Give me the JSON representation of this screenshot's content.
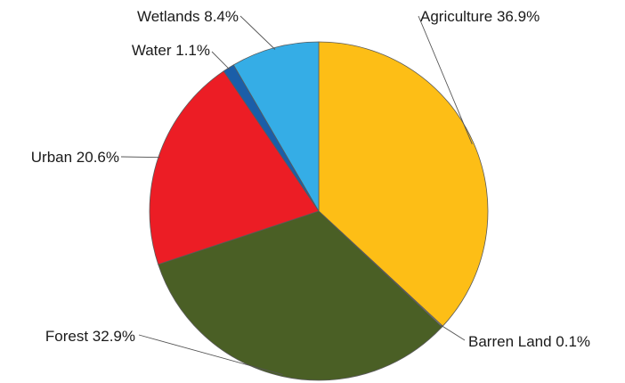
{
  "chart_data": {
    "type": "pie",
    "slices": [
      {
        "name": "Agriculture",
        "value": 36.9,
        "label": "Agriculture 36.9%",
        "color": "#FDBE16"
      },
      {
        "name": "Barren Land",
        "value": 0.1,
        "label": "Barren Land 0.1%",
        "color": "#B8B8B8"
      },
      {
        "name": "Forest",
        "value": 32.9,
        "label": "Forest 32.9%",
        "color": "#4A5F25"
      },
      {
        "name": "Urban",
        "value": 20.6,
        "label": "Urban 20.6%",
        "color": "#EC1D25"
      },
      {
        "name": "Water",
        "value": 1.1,
        "label": "Water 1.1%",
        "color": "#1B5EA8"
      },
      {
        "name": "Wetlands",
        "value": 8.4,
        "label": "Wetlands 8.4%",
        "color": "#35ADE6"
      }
    ],
    "start": "12 o'clock",
    "direction": "clockwise",
    "legend": "none",
    "labels": "outside with leader lines"
  }
}
